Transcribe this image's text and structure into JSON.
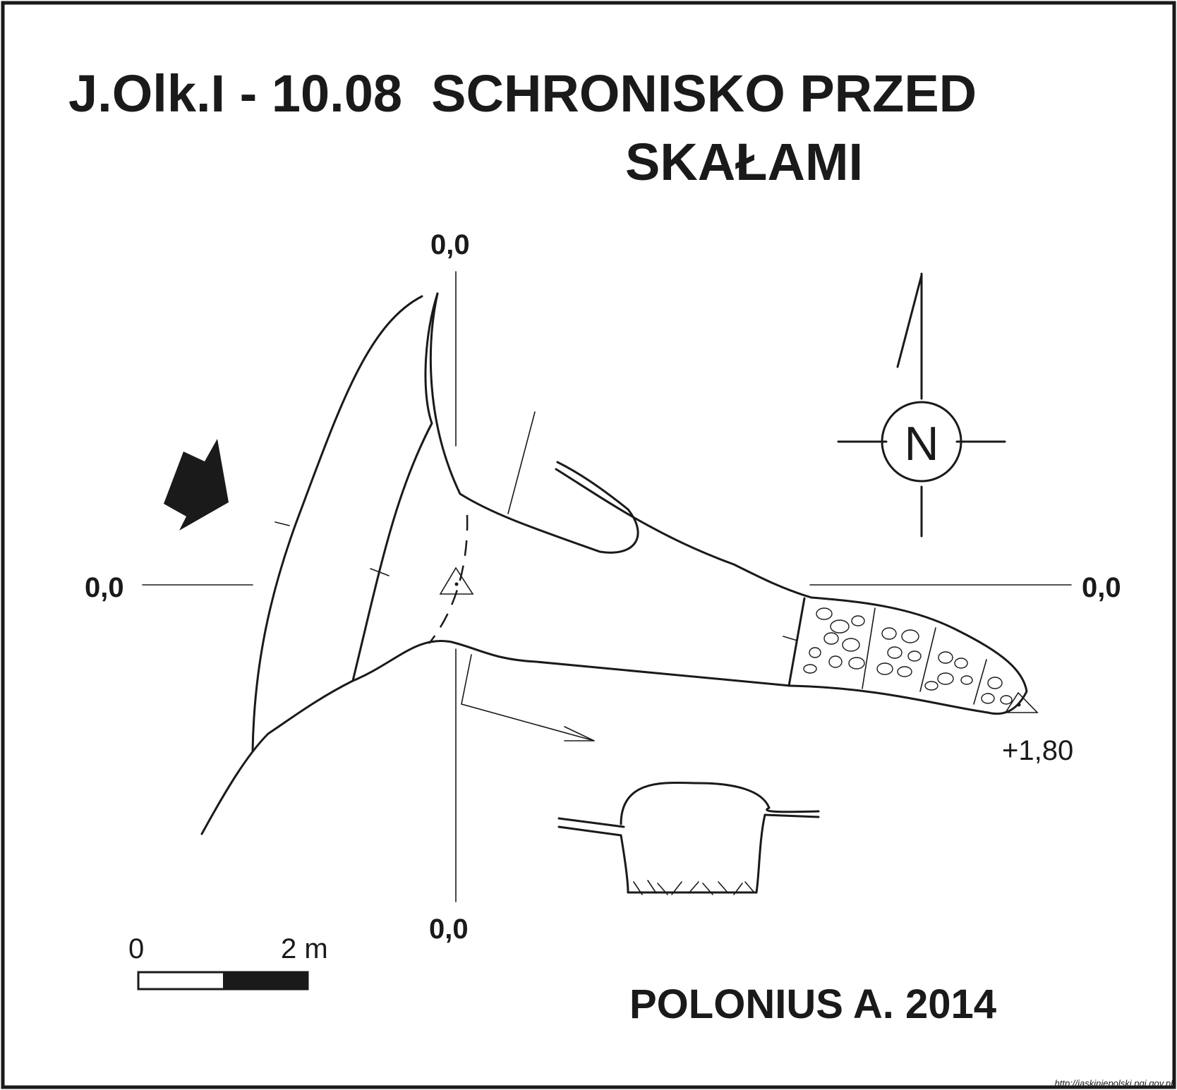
{
  "title": {
    "line1": "J.Olk.I - 10.08  SCHRONISKO PRZED",
    "line2": "SKAŁAMI"
  },
  "axes": {
    "top": "0,0",
    "bottom": "0,0",
    "left": "0,0",
    "right": "0,0"
  },
  "elevation": "+1,80",
  "north": {
    "label": "N"
  },
  "scale": {
    "start": "0",
    "end": "2 m"
  },
  "author": "POLONIUS A. 2014",
  "source": "http://jaskiniepolski.pgi.gov.pl",
  "colors": {
    "ink": "#1a1a1a",
    "background": "#ffffff"
  }
}
